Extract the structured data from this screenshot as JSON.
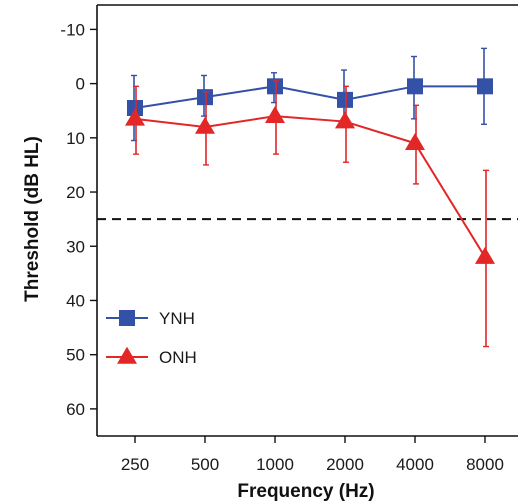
{
  "chart_data": {
    "type": "line",
    "xlabel": "Frequency (Hz)",
    "ylabel": "Threshold (dB HL)",
    "x_categories": [
      "250",
      "500",
      "1000",
      "2000",
      "4000",
      "8000"
    ],
    "y_ticks": [
      -10,
      0,
      10,
      20,
      30,
      40,
      50,
      60
    ],
    "ylim": [
      -14.5,
      65
    ],
    "y_inverted": true,
    "grid": false,
    "reference_line": {
      "y": 25,
      "style": "dashed",
      "color": "#111111"
    },
    "legend_position": "bottom-left",
    "series": [
      {
        "name": "YNH",
        "color": "#3451a8",
        "marker": "square",
        "values": [
          4.5,
          2.5,
          0.5,
          3,
          0.5,
          0.5
        ],
        "err_low": [
          -1.5,
          -1.5,
          -2,
          -2.5,
          -5,
          -6.5
        ],
        "err_high": [
          10.5,
          6,
          3.5,
          6.5,
          6.5,
          7.5
        ]
      },
      {
        "name": "ONH",
        "color": "#e32626",
        "marker": "triangle",
        "values": [
          6.5,
          8,
          6,
          7,
          11,
          32
        ],
        "err_low": [
          0.5,
          1.5,
          -0.5,
          0.5,
          4,
          16
        ],
        "err_high": [
          13,
          15,
          13,
          14.5,
          18.5,
          48.5
        ]
      }
    ]
  }
}
